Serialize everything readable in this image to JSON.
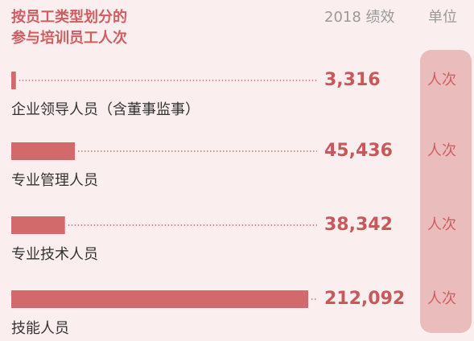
{
  "chart_data": {
    "type": "bar",
    "title": [
      "按员工类型划分的",
      "参与培训员工人次"
    ],
    "value_header": "2018 绩效",
    "unit_header": "单位",
    "unit": "人次",
    "categories": [
      "企业领导人员（含董事监事）",
      "专业管理人员",
      "专业技术人员",
      "技能人员"
    ],
    "values": [
      3316,
      45436,
      38342,
      212092
    ],
    "value_labels": [
      "3,316",
      "45,436",
      "38,342",
      "212,092"
    ],
    "color": "#d26a6c"
  }
}
